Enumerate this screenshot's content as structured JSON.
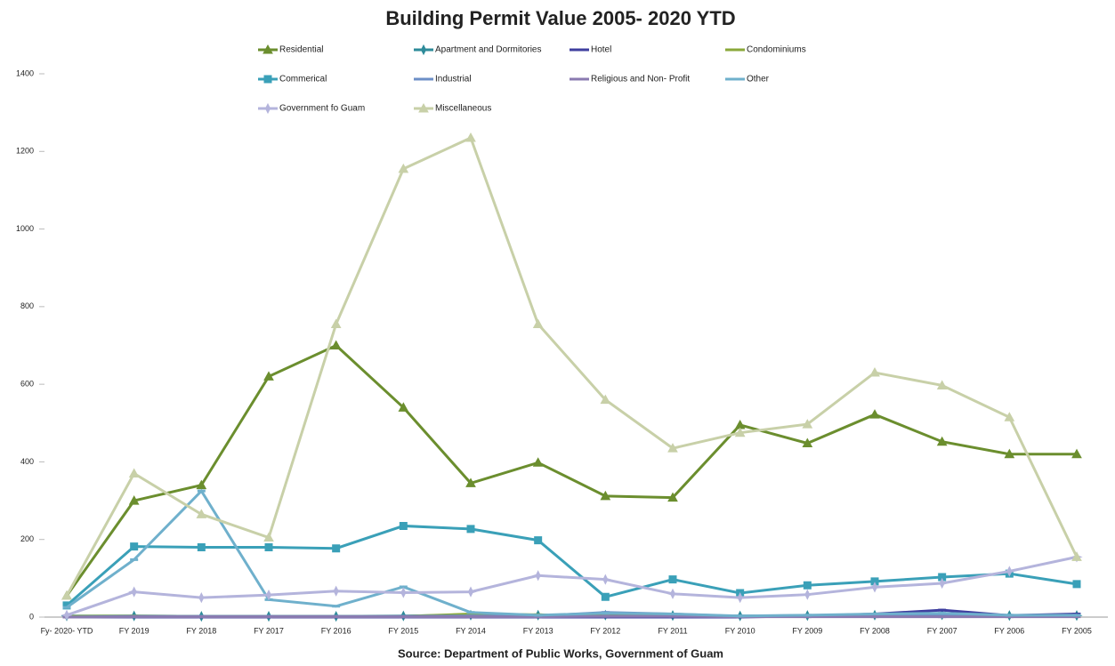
{
  "chart_data": {
    "type": "line",
    "title": "Building Permit Value 2005- 2020 YTD",
    "source": "Source: Department of Public Works, Government of Guam",
    "categories": [
      "Fy- 2020- YTD",
      "FY 2019",
      "FY 2018",
      "FY 2017",
      "FY 2016",
      "FY 2015",
      "FY 2014",
      "FY 2013",
      "FY 2012",
      "FY 2011",
      "FY 2010",
      "FY 2009",
      "FY 2008",
      "FY 2007",
      "FY 2006",
      "FY 2005"
    ],
    "ylim": [
      0,
      1400
    ],
    "yticks": [
      0,
      200,
      400,
      600,
      800,
      1000,
      1200,
      1400
    ],
    "grid": false,
    "series": [
      {
        "name": "Residential",
        "color": "#6b8e2e",
        "marker": "triangle",
        "values": [
          55,
          300,
          340,
          620,
          700,
          540,
          345,
          398,
          312,
          308,
          495,
          448,
          522,
          452,
          420,
          420
        ]
      },
      {
        "name": "Apartment and Dormitories",
        "color": "#2e8b9a",
        "marker": "star",
        "values": [
          3,
          3,
          2,
          2,
          2,
          3,
          5,
          5,
          5,
          4,
          3,
          4,
          5,
          6,
          4,
          4
        ]
      },
      {
        "name": "Hotel",
        "color": "#3f3f9f",
        "marker": "dash",
        "values": [
          0,
          0,
          0,
          0,
          0,
          0,
          0,
          0,
          0,
          0,
          0,
          3,
          8,
          18,
          4,
          8
        ]
      },
      {
        "name": "Condominiums",
        "color": "#8aa83a",
        "marker": "dash",
        "values": [
          2,
          3,
          2,
          2,
          2,
          2,
          8,
          6,
          3,
          3,
          2,
          2,
          2,
          2,
          2,
          2
        ]
      },
      {
        "name": "Commerical",
        "color": "#3aa0b8",
        "marker": "square",
        "values": [
          30,
          182,
          180,
          180,
          177,
          235,
          227,
          198,
          52,
          97,
          62,
          82,
          92,
          103,
          112,
          85
        ]
      },
      {
        "name": "Industrial",
        "color": "#6c8fc7",
        "marker": "dash",
        "values": [
          0,
          2,
          2,
          2,
          2,
          2,
          3,
          3,
          12,
          8,
          2,
          3,
          5,
          4,
          3,
          3
        ]
      },
      {
        "name": "Religious and Non- Profit",
        "color": "#8a7ab0",
        "marker": "dash",
        "values": [
          0,
          1,
          1,
          1,
          1,
          1,
          1,
          1,
          2,
          2,
          1,
          1,
          1,
          1,
          1,
          1
        ]
      },
      {
        "name": "Other",
        "color": "#6fb0cc",
        "marker": "dash",
        "values": [
          25,
          148,
          325,
          45,
          28,
          78,
          12,
          5,
          10,
          8,
          3,
          5,
          8,
          10,
          5,
          5
        ]
      },
      {
        "name": "Government fo Guam",
        "color": "#b4b4dc",
        "marker": "star",
        "values": [
          5,
          65,
          50,
          57,
          67,
          63,
          65,
          107,
          97,
          60,
          50,
          58,
          77,
          87,
          118,
          155
        ]
      },
      {
        "name": "Miscellaneous",
        "color": "#c8d0a8",
        "marker": "triangle",
        "values": [
          55,
          370,
          265,
          205,
          755,
          1155,
          1235,
          755,
          560,
          435,
          475,
          497,
          630,
          597,
          515,
          155
        ]
      }
    ]
  }
}
